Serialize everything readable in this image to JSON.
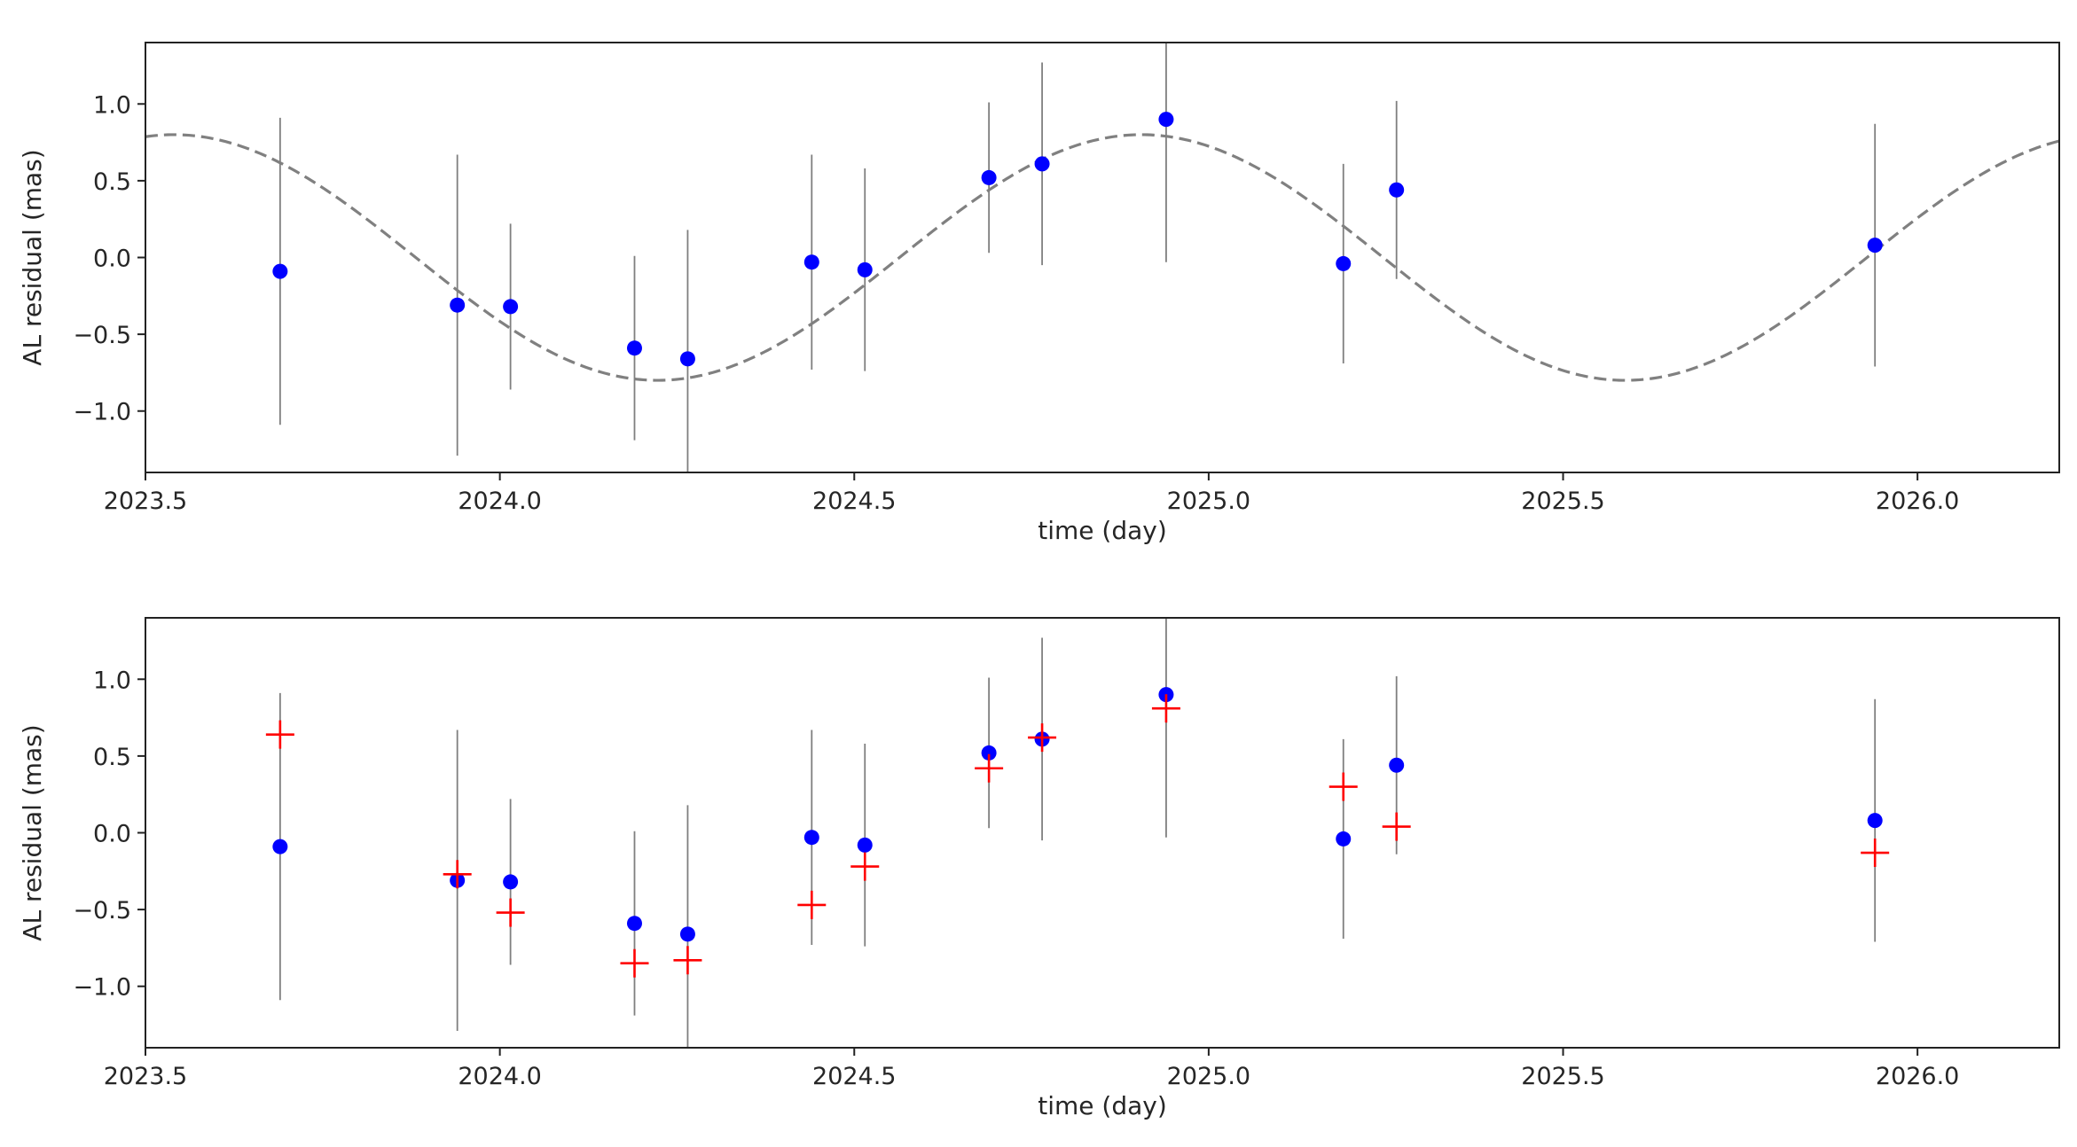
{
  "chart_data": [
    {
      "type": "scatter",
      "title": "",
      "xlabel": "time (day)",
      "ylabel": "AL residual (mas)",
      "xlim": [
        2023.5,
        2026.2
      ],
      "ylim": [
        -1.4,
        1.4
      ],
      "xticks": [
        "2023.5",
        "2024.0",
        "2024.5",
        "2025.0",
        "2025.5",
        "2026.0"
      ],
      "yticks": [
        "−1.0",
        "−0.5",
        "0.0",
        "0.5",
        "1.0"
      ],
      "grid": false,
      "legend": "none",
      "colors": {
        "points": "#0000ff",
        "errorbars": "#7f7f7f",
        "model": "#808080"
      },
      "series": [
        {
          "kind": "points_with_errorbars",
          "x": [
            2023.69,
            2023.94,
            2024.015,
            2024.19,
            2024.265,
            2024.44,
            2024.515,
            2024.69,
            2024.765,
            2024.94,
            2025.19,
            2025.265,
            2025.94
          ],
          "y": [
            -0.09,
            -0.31,
            -0.32,
            -0.59,
            -0.66,
            -0.03,
            -0.08,
            0.52,
            0.61,
            0.9,
            -0.04,
            0.44,
            0.08
          ],
          "yerr": [
            1.0,
            0.98,
            0.54,
            0.6,
            0.84,
            0.7,
            0.66,
            0.49,
            0.66,
            0.93,
            0.65,
            0.58,
            0.79
          ]
        },
        {
          "kind": "dashed_model_curve",
          "amplitude": 0.8,
          "period": 1.365,
          "peak_x": 2024.905
        }
      ]
    },
    {
      "type": "scatter",
      "title": "",
      "xlabel": "time (day)",
      "ylabel": "AL residual (mas)",
      "xlim": [
        2023.5,
        2026.2
      ],
      "ylim": [
        -1.4,
        1.4
      ],
      "xticks": [
        "2023.5",
        "2024.0",
        "2024.5",
        "2025.0",
        "2025.5",
        "2026.0"
      ],
      "yticks": [
        "−1.0",
        "−0.5",
        "0.0",
        "0.5",
        "1.0"
      ],
      "grid": false,
      "legend": "none",
      "colors": {
        "points": "#0000ff",
        "errorbars": "#7f7f7f",
        "model": "#ff0000"
      },
      "series": [
        {
          "kind": "points_with_errorbars",
          "x": [
            2023.69,
            2023.94,
            2024.015,
            2024.19,
            2024.265,
            2024.44,
            2024.515,
            2024.69,
            2024.765,
            2024.94,
            2025.19,
            2025.265,
            2025.94
          ],
          "y": [
            -0.09,
            -0.31,
            -0.32,
            -0.59,
            -0.66,
            -0.03,
            -0.08,
            0.52,
            0.61,
            0.9,
            -0.04,
            0.44,
            0.08
          ],
          "yerr": [
            1.0,
            0.98,
            0.54,
            0.6,
            0.84,
            0.7,
            0.66,
            0.49,
            0.66,
            0.93,
            0.65,
            0.58,
            0.79
          ]
        },
        {
          "kind": "model_crosses",
          "x": [
            2023.69,
            2023.94,
            2024.015,
            2024.19,
            2024.265,
            2024.44,
            2024.515,
            2024.69,
            2024.765,
            2024.94,
            2025.19,
            2025.265,
            2025.94
          ],
          "y": [
            0.64,
            -0.27,
            -0.52,
            -0.85,
            -0.83,
            -0.47,
            -0.22,
            0.42,
            0.62,
            0.81,
            0.3,
            0.04,
            -0.13
          ]
        }
      ]
    }
  ]
}
